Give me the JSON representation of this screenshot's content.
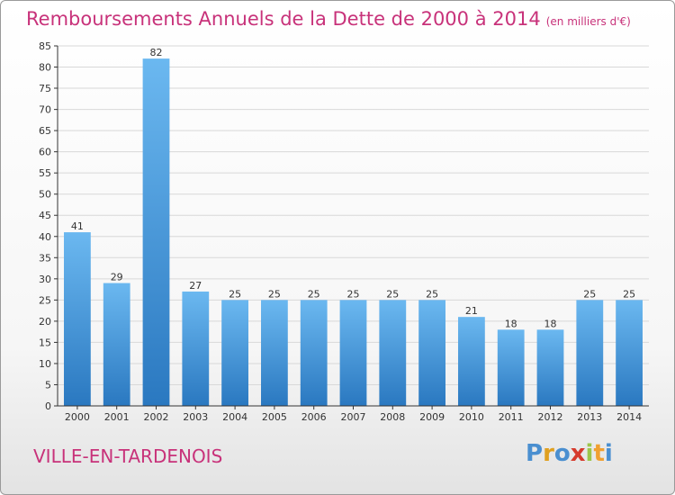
{
  "title": {
    "main": "Remboursements Annuels de la Dette de 2000 à 2014",
    "unit": "(en milliers d'€)"
  },
  "city": "VILLE-EN-TARDENOIS",
  "logo": {
    "letters": [
      "P",
      "r",
      "o",
      "x",
      "i",
      "t",
      "i"
    ],
    "colors": [
      "#4a8fd0",
      "#e0a020",
      "#4a8fd0",
      "#d63a2c",
      "#9cc64a",
      "#f0a030",
      "#4a8fd0"
    ]
  },
  "chart_data": {
    "type": "bar",
    "categories": [
      "2000",
      "2001",
      "2002",
      "2003",
      "2004",
      "2005",
      "2006",
      "2007",
      "2008",
      "2009",
      "2010",
      "2011",
      "2012",
      "2013",
      "2014"
    ],
    "values": [
      41,
      29,
      82,
      27,
      25,
      25,
      25,
      25,
      25,
      25,
      21,
      18,
      18,
      25,
      25
    ],
    "data_labels": [
      "41",
      "29",
      "82",
      "27",
      "25",
      "25",
      "25",
      "25",
      "25",
      "25",
      "21",
      "18",
      "18",
      "25",
      "25"
    ],
    "ylim": [
      0,
      85
    ],
    "yticks": [
      "0",
      "5",
      "10",
      "15",
      "20",
      "25",
      "30",
      "35",
      "40",
      "45",
      "50",
      "55",
      "60",
      "65",
      "70",
      "75",
      "80",
      "85"
    ],
    "grid": true,
    "colors": {
      "bar": "#4a9ee0",
      "bar_light": "#6bb8f0",
      "bar_dark": "#2a78c0",
      "grid": "#d8d8d8",
      "axis": "#333333",
      "text": "#333333"
    }
  }
}
